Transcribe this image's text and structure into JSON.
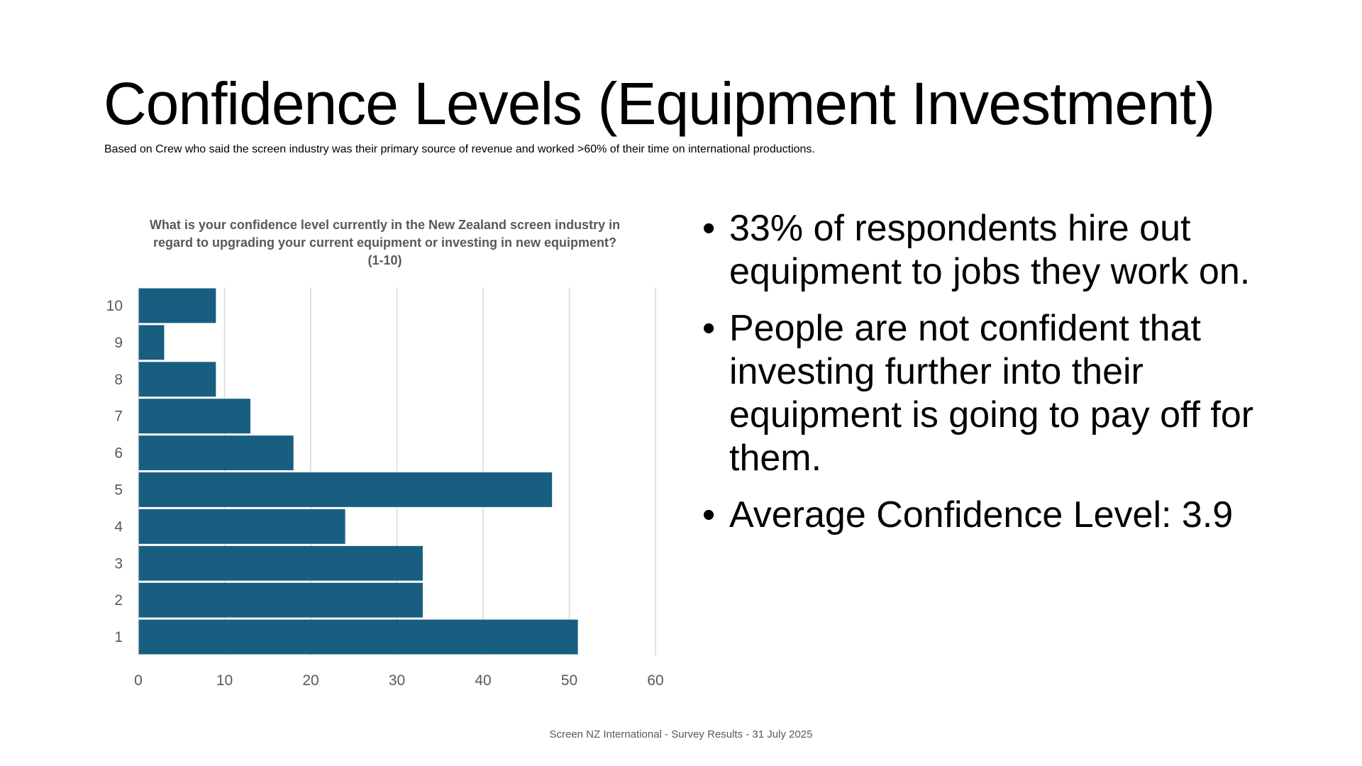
{
  "slide": {
    "title": "Confidence Levels (Equipment Investment)",
    "subtitle": "Based on Crew who said the screen industry was their primary source of revenue and worked >60% of their time on international productions.",
    "footer": "Screen NZ International - Survey Results - 31 July 2025"
  },
  "bullets": [
    "33% of respondents hire out equipment to jobs they work on.",
    "People are not confident that investing further into their equipment is going to pay off for them.",
    "Average Confidence Level: 3.9"
  ],
  "bullet_symbol": "•",
  "chart_data": {
    "type": "bar",
    "orientation": "horizontal",
    "title": "What is your confidence level currently in the New Zealand screen industry in regard to upgrading your current equipment or investing in new equipment? (1-10)",
    "categories": [
      "10",
      "9",
      "8",
      "7",
      "6",
      "5",
      "4",
      "3",
      "2",
      "1"
    ],
    "values": [
      9,
      3,
      9,
      13,
      18,
      48,
      24,
      33,
      33,
      51
    ],
    "xlim": [
      0,
      60
    ],
    "xticks": [
      "0",
      "10",
      "20",
      "30",
      "40",
      "50",
      "60"
    ],
    "grid": true,
    "bar_color": "#175e81",
    "grid_color": "#d9d9d9",
    "tick_color": "#595959"
  }
}
